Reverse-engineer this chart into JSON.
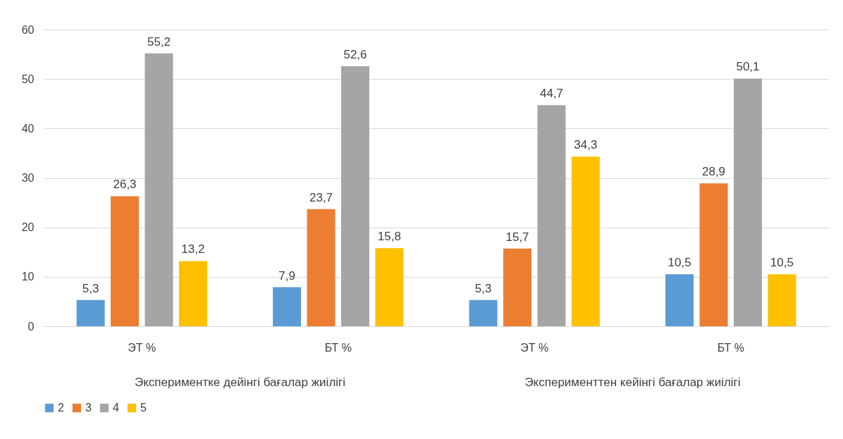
{
  "chart_data": {
    "type": "bar",
    "categories": [
      "ЭТ %",
      "БТ %",
      "ЭТ %",
      "БТ %"
    ],
    "series": [
      {
        "name": "2",
        "color": "#5b9bd5",
        "values": [
          5.3,
          7.9,
          5.3,
          10.5
        ],
        "value_labels": [
          "5,3",
          "7,9",
          "5,3",
          "10,5"
        ]
      },
      {
        "name": "3",
        "color": "#ed7d31",
        "values": [
          26.3,
          23.7,
          15.7,
          28.9
        ],
        "value_labels": [
          "26,3",
          "23,7",
          "15,7",
          "28,9"
        ]
      },
      {
        "name": "4",
        "color": "#a5a5a5",
        "values": [
          55.2,
          52.6,
          44.7,
          50.1
        ],
        "value_labels": [
          "55,2",
          "52,6",
          "44,7",
          "50,1"
        ]
      },
      {
        "name": "5",
        "color": "#ffc000",
        "values": [
          13.2,
          15.8,
          34.3,
          10.5
        ],
        "value_labels": [
          "13,2",
          "15,8",
          "34,3",
          "10,5"
        ]
      }
    ],
    "annotations": [
      "Экспериментке дейінгі бағалар жиілігі",
      "Эксперименттен кейінгі бағалар жиілігі"
    ],
    "ylim": [
      0,
      60
    ],
    "yticks": [
      0,
      10,
      20,
      30,
      40,
      50,
      60
    ],
    "grid": "y",
    "legend": "bottom"
  }
}
